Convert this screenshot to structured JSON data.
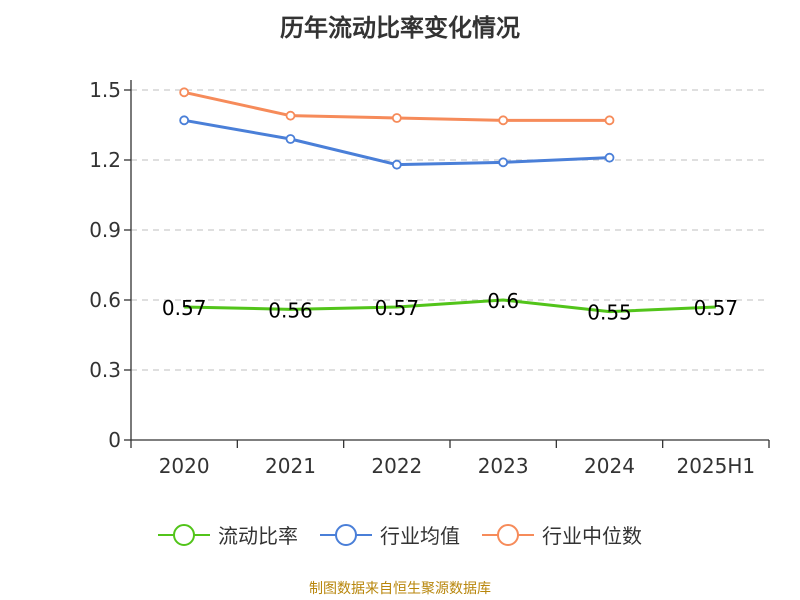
{
  "chart_data": {
    "type": "line",
    "title": "历年流动比率变化情况",
    "categories": [
      "2020",
      "2021",
      "2022",
      "2023",
      "2024",
      "2025H1"
    ],
    "ylim": [
      0,
      1.5
    ],
    "yticks": [
      "0",
      "0.3",
      "0.6",
      "0.9",
      "1.2",
      "1.5"
    ],
    "grid": true,
    "legend_position": "bottom",
    "series": [
      {
        "name": "流动比率",
        "color": "#52c41a",
        "values": [
          0.57,
          0.56,
          0.57,
          0.6,
          0.55,
          0.57
        ],
        "labels": [
          "0.57",
          "0.56",
          "0.57",
          "0.6",
          "0.55",
          "0.57"
        ],
        "show_markers": false
      },
      {
        "name": "行业均值",
        "color": "#4a7fd8",
        "values": [
          1.37,
          1.29,
          1.18,
          1.19,
          1.21,
          null
        ],
        "show_markers": true
      },
      {
        "name": "行业中位数",
        "color": "#f68b5a",
        "values": [
          1.49,
          1.39,
          1.38,
          1.37,
          1.37,
          null
        ],
        "show_markers": true
      }
    ]
  },
  "source": "制图数据来自恒生聚源数据库"
}
